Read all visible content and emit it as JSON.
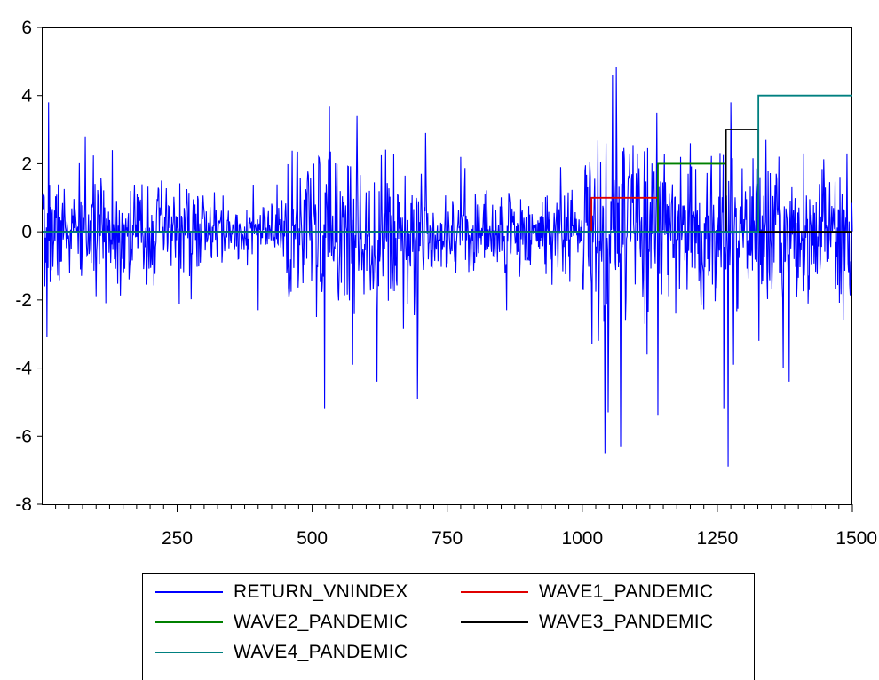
{
  "chart_data": {
    "type": "line",
    "title": "",
    "xlabel": "",
    "ylabel": "",
    "xlim": [
      1,
      1500
    ],
    "ylim": [
      -8,
      6
    ],
    "x_ticks": [
      250,
      500,
      750,
      1000,
      1250,
      1500
    ],
    "x_tick_labels": [
      "250",
      "500",
      "750",
      "1000",
      "1250",
      "1500"
    ],
    "y_ticks": [
      -8,
      -6,
      -4,
      -2,
      0,
      2,
      4,
      6
    ],
    "y_tick_labels": [
      "-8",
      "-6",
      "-4",
      "-2",
      "0",
      "2",
      "4",
      "6"
    ],
    "grid": false,
    "legend_position": "bottom",
    "series": [
      {
        "name": "RETURN_VNINDEX",
        "color": "#0000ff",
        "kind": "noise",
        "n": 1500,
        "seed": 7,
        "regimes": [
          {
            "from": 1,
            "to": 300,
            "sd": 0.75
          },
          {
            "from": 300,
            "to": 450,
            "sd": 0.45
          },
          {
            "from": 450,
            "to": 720,
            "sd": 1.15
          },
          {
            "from": 720,
            "to": 1000,
            "sd": 0.6
          },
          {
            "from": 1000,
            "to": 1140,
            "sd": 1.5
          },
          {
            "from": 1140,
            "to": 1500,
            "sd": 1.05
          }
        ],
        "spikes": [
          {
            "x": 12,
            "y": 3.8
          },
          {
            "x": 9,
            "y": -3.1
          },
          {
            "x": 5,
            "y": -1.6
          },
          {
            "x": 80,
            "y": 2.8
          },
          {
            "x": 130,
            "y": 2.4
          },
          {
            "x": 400,
            "y": -2.3
          },
          {
            "x": 508,
            "y": -2.5
          },
          {
            "x": 523,
            "y": -5.2
          },
          {
            "x": 532,
            "y": 3.7
          },
          {
            "x": 575,
            "y": -3.9
          },
          {
            "x": 583,
            "y": 3.4
          },
          {
            "x": 620,
            "y": -4.4
          },
          {
            "x": 695,
            "y": -4.9
          },
          {
            "x": 710,
            "y": 2.9
          },
          {
            "x": 775,
            "y": 2.2
          },
          {
            "x": 860,
            "y": -2.3
          },
          {
            "x": 960,
            "y": 1.9
          },
          {
            "x": 1018,
            "y": -3.3
          },
          {
            "x": 1030,
            "y": -3.2
          },
          {
            "x": 1042,
            "y": -6.5
          },
          {
            "x": 1048,
            "y": -5.3
          },
          {
            "x": 1056,
            "y": 4.6
          },
          {
            "x": 1063,
            "y": 4.85
          },
          {
            "x": 1071,
            "y": -6.3
          },
          {
            "x": 1088,
            "y": 2.3
          },
          {
            "x": 1120,
            "y": -3.6
          },
          {
            "x": 1138,
            "y": 3.5
          },
          {
            "x": 1140,
            "y": -5.4
          },
          {
            "x": 1200,
            "y": 2.6
          },
          {
            "x": 1262,
            "y": -5.2
          },
          {
            "x": 1270,
            "y": -6.9
          },
          {
            "x": 1275,
            "y": 3.8
          },
          {
            "x": 1280,
            "y": -3.9
          },
          {
            "x": 1327,
            "y": -3.2
          },
          {
            "x": 1340,
            "y": 2.7
          },
          {
            "x": 1372,
            "y": -4.0
          },
          {
            "x": 1383,
            "y": -4.4
          },
          {
            "x": 1410,
            "y": 2.3
          },
          {
            "x": 1483,
            "y": -2.6
          },
          {
            "x": 1490,
            "y": 2.3
          },
          {
            "x": 1498,
            "y": -1.4
          }
        ]
      },
      {
        "name": "WAVE1_PANDEMIC",
        "color": "#e00000",
        "kind": "step",
        "segments": [
          {
            "from": 1,
            "to": 1017,
            "y": 0
          },
          {
            "from": 1017,
            "to": 1140,
            "y": 1
          },
          {
            "from": 1140,
            "to": 1500,
            "y": 0
          }
        ]
      },
      {
        "name": "WAVE2_PANDEMIC",
        "color": "#008000",
        "kind": "step",
        "segments": [
          {
            "from": 1,
            "to": 1140,
            "y": 0
          },
          {
            "from": 1140,
            "to": 1265,
            "y": 2
          },
          {
            "from": 1265,
            "to": 1500,
            "y": 0
          }
        ]
      },
      {
        "name": "WAVE3_PANDEMIC",
        "color": "#000000",
        "kind": "step",
        "segments": [
          {
            "from": 1,
            "to": 1266,
            "y": 0
          },
          {
            "from": 1266,
            "to": 1326,
            "y": 3
          },
          {
            "from": 1326,
            "to": 1500,
            "y": 0
          }
        ]
      },
      {
        "name": "WAVE4_PANDEMIC",
        "color": "#008080",
        "kind": "step",
        "segments": [
          {
            "from": 1,
            "to": 1326,
            "y": 0
          },
          {
            "from": 1326,
            "to": 1500,
            "y": 4
          }
        ]
      }
    ]
  }
}
